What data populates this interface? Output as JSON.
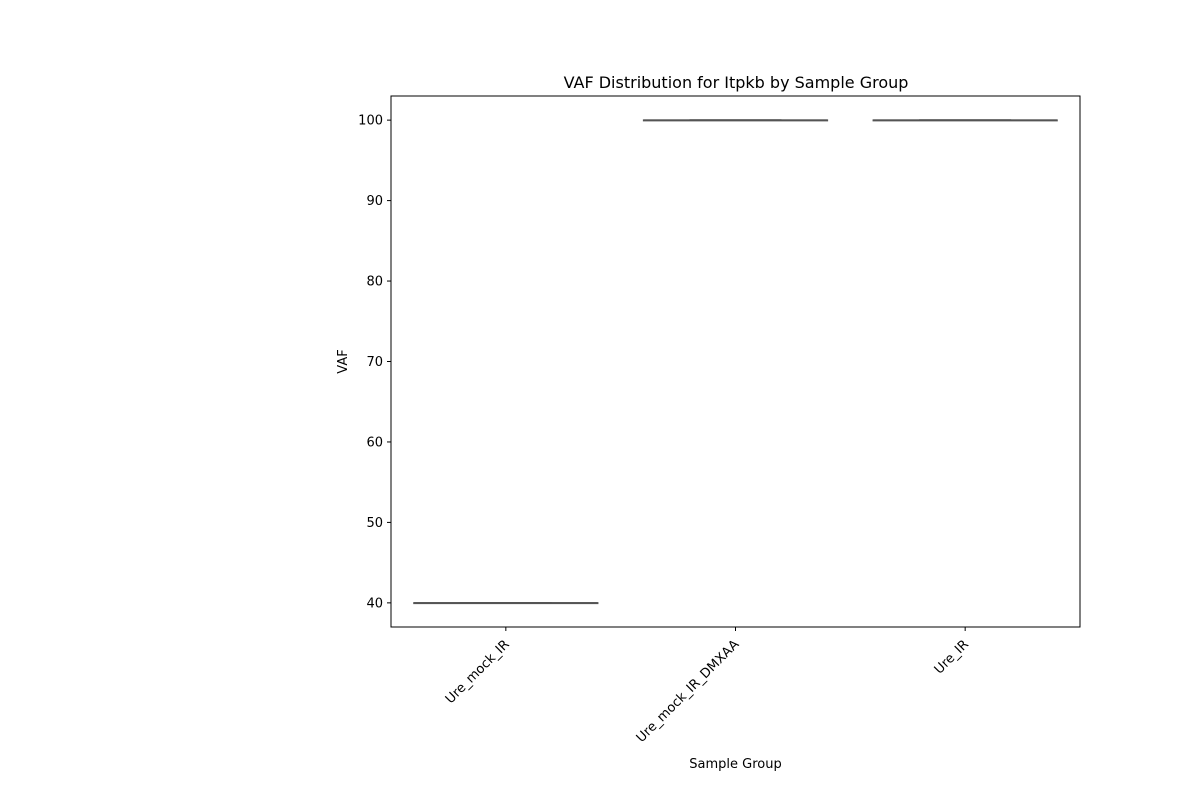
{
  "chart_data": {
    "type": "box",
    "title": "VAF Distribution for Itpkb by Sample Group",
    "xlabel": "Sample Group",
    "ylabel": "VAF",
    "categories": [
      "Ure_mock_IR",
      "Ure_mock_IR_DMXAA",
      "Ure_IR"
    ],
    "values": [
      40,
      100,
      100
    ],
    "box_stats": [
      {
        "group": "Ure_mock_IR",
        "min": 40,
        "q1": 40,
        "median": 40,
        "q3": 40,
        "max": 40
      },
      {
        "group": "Ure_mock_IR_DMXAA",
        "min": 100,
        "q1": 100,
        "median": 100,
        "q3": 100,
        "max": 100
      },
      {
        "group": "Ure_IR",
        "min": 100,
        "q1": 100,
        "median": 100,
        "q3": 100,
        "max": 100
      }
    ],
    "ylim": [
      37,
      103
    ],
    "yticks": [
      40,
      50,
      60,
      70,
      80,
      90,
      100
    ],
    "grid": false,
    "colors": {
      "box_line": "#555555",
      "axes": "#000000",
      "background": "#ffffff"
    }
  }
}
